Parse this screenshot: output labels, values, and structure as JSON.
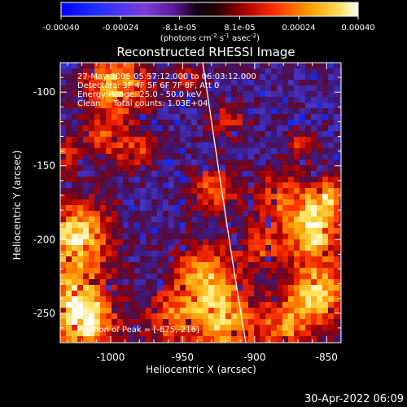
{
  "colorbar": {
    "tick_labels": [
      "-0.00040",
      "-0.00024",
      "-8.1e-05",
      "8.1e-05",
      "0.00024",
      "0.00040"
    ],
    "unit_prefix": "(photons cm",
    "unit_exp1": "-2",
    "unit_mid": " s",
    "unit_exp2": "-1",
    "unit_mid2": " asec",
    "unit_exp3": "-2",
    "unit_suffix": ")"
  },
  "plot": {
    "title": "Reconstructed RHESSI Image",
    "info_lines": [
      "27-May-2005 05:57:12.000 to 06:03:12.000",
      "Detectors: 3F 4F 5F 6F 7F 8F, Att 0",
      "Energy Range: 25.0 - 50.0 keV",
      "Clean     Total counts: 1.03E+04"
    ],
    "peak_label": "Position of Peak = [-875,-216]",
    "xlabel": "Heliocentric X (arcsec)",
    "ylabel": "Heliocentric Y (arcsec)",
    "x_ticks": [
      "-1000",
      "-950",
      "-900",
      "-850"
    ],
    "y_ticks": [
      "-100",
      "-150",
      "-200",
      "-250"
    ]
  },
  "footer": {
    "timestamp": "30-Apr-2022 06:09"
  },
  "chart_data": {
    "type": "heatmap",
    "title": "Reconstructed RHESSI Image",
    "xlabel": "Heliocentric X (arcsec)",
    "ylabel": "Heliocentric Y (arcsec)",
    "xlim": [
      -1035,
      -840
    ],
    "ylim": [
      -270,
      -80
    ],
    "colorbar_range": [
      -0.0004,
      0.0004
    ],
    "colorbar_ticks": [
      -0.0004,
      -0.00024,
      -8.1e-05,
      8.1e-05,
      0.00024,
      0.0004
    ],
    "peak_position": [
      -875,
      -216
    ],
    "grid": false
  }
}
